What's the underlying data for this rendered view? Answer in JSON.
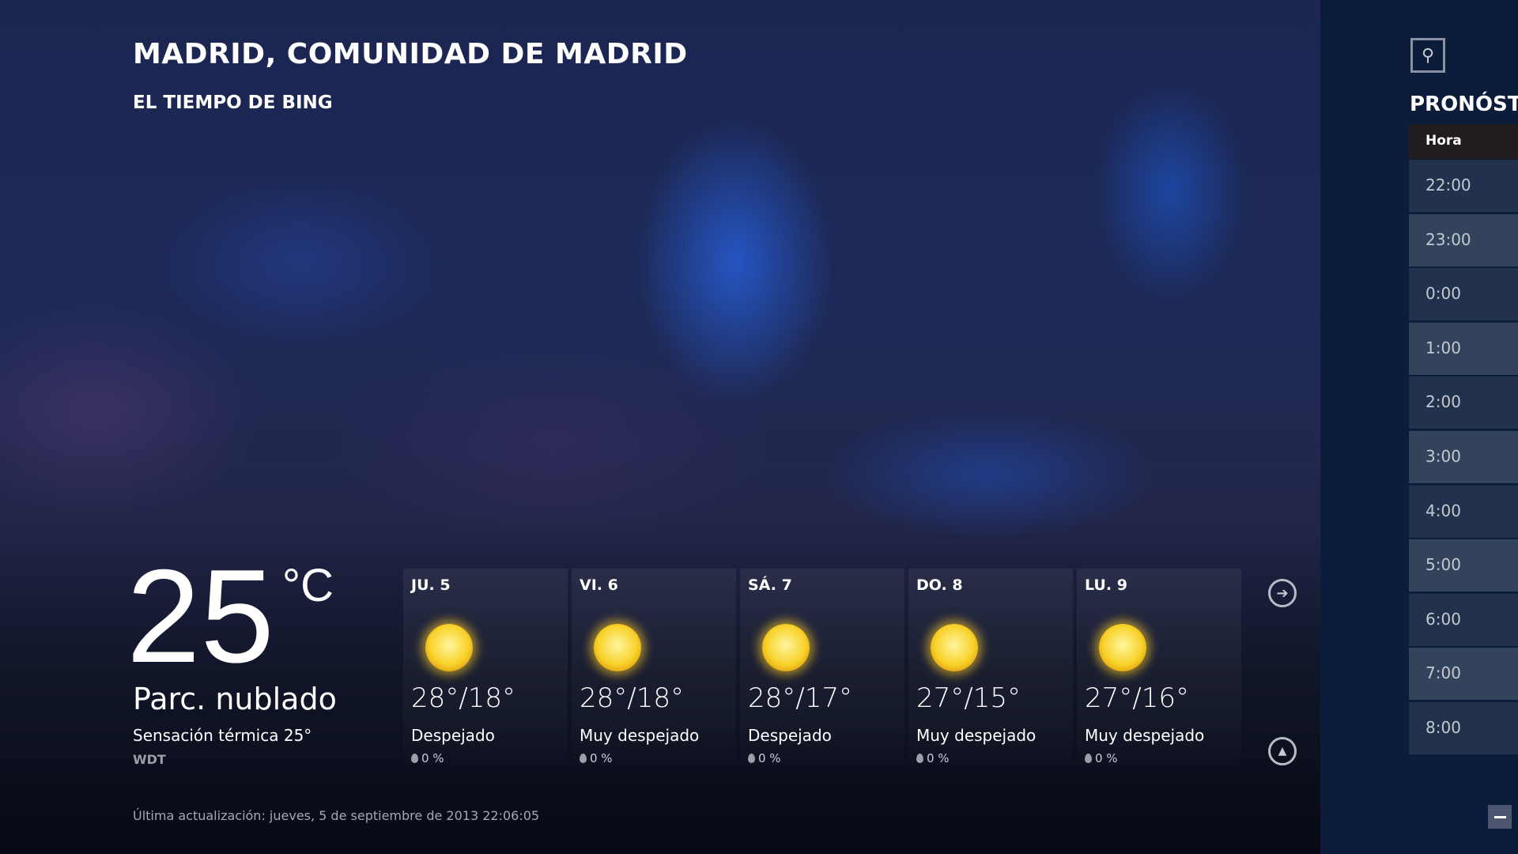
{
  "location": "MADRID, COMUNIDAD DE MADRID",
  "app_name": "EL TIEMPO DE BING",
  "current": {
    "temp": "25",
    "unit": "°C",
    "condition": "Parc. nublado",
    "feels_like": "Sensación térmica 25°",
    "source": "WDT"
  },
  "forecast": [
    {
      "day": "JU. 5",
      "range": "28°/18°",
      "desc": "Despejado",
      "precip": "0 %",
      "icon": "sun-icon"
    },
    {
      "day": "VI. 6",
      "range": "28°/18°",
      "desc": "Muy despejado",
      "precip": "0 %",
      "icon": "sun-icon"
    },
    {
      "day": "SÁ. 7",
      "range": "28°/17°",
      "desc": "Despejado",
      "precip": "0 %",
      "icon": "sun-icon"
    },
    {
      "day": "DO. 8",
      "range": "27°/15°",
      "desc": "Muy despejado",
      "precip": "0 %",
      "icon": "sun-icon"
    },
    {
      "day": "LU. 9",
      "range": "27°/16°",
      "desc": "Muy despejado",
      "precip": "0 %",
      "icon": "sun-icon"
    }
  ],
  "last_updated": "Última actualización: jueves, 5 de septiembre de 2013 22:06:05",
  "hourly": {
    "title": "PRONÓSTIC",
    "header": "Hora",
    "hours": [
      "22:00",
      "23:00",
      "0:00",
      "1:00",
      "2:00",
      "3:00",
      "4:00",
      "5:00",
      "6:00",
      "7:00",
      "8:00"
    ]
  },
  "colors": {
    "panel_bg": "#0b1d3a",
    "row_dark": "#22324d",
    "row_light": "#34435c",
    "header_bg": "#211d1f"
  }
}
